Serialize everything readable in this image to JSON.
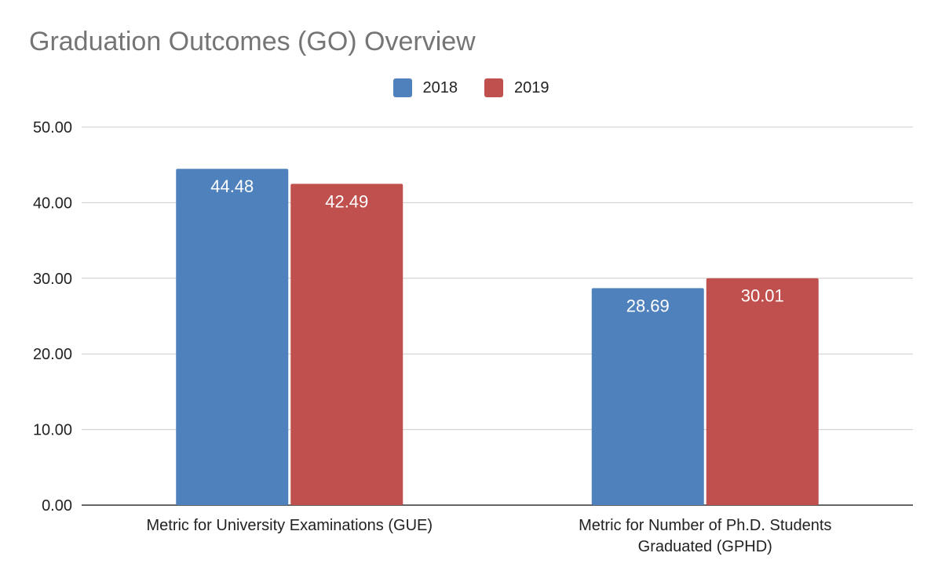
{
  "chart_data": {
    "type": "bar",
    "title": "Graduation Outcomes (GO) Overview",
    "categories": [
      "Metric for University Examinations (GUE)",
      "Metric for Number of Ph.D. Students Graduated (GPHD)"
    ],
    "category_lines": [
      [
        "Metric for University Examinations (GUE)"
      ],
      [
        "Metric for Number of Ph.D. Students",
        "Graduated (GPHD)"
      ]
    ],
    "series": [
      {
        "name": "2018",
        "color": "#4f81bd",
        "values": [
          44.48,
          28.69
        ]
      },
      {
        "name": "2019",
        "color": "#c0504d",
        "values": [
          42.49,
          30.01
        ]
      }
    ],
    "ylim": [
      0,
      50
    ],
    "yticks": [
      "0.00",
      "10.00",
      "20.00",
      "30.00",
      "40.00",
      "50.00"
    ],
    "ytick_values": [
      0,
      10,
      20,
      30,
      40,
      50
    ],
    "grid": true,
    "legend_position": "top-center",
    "data_labels": true,
    "xlabel": "",
    "ylabel": ""
  }
}
